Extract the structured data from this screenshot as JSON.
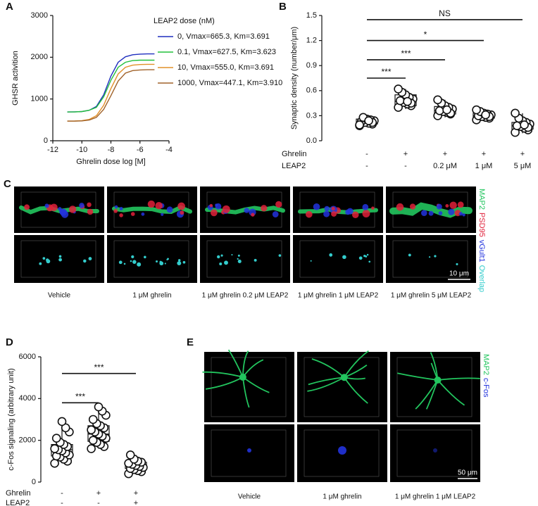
{
  "chart_data": [
    {
      "panel_label": "A",
      "type": "line",
      "ylabel": "GHSR activition",
      "xlabel": "Ghrelin dose log [M]",
      "legend_title": "LEAP2 dose (nM)",
      "x": [
        -11,
        -10.5,
        -10,
        -9.5,
        -9,
        -8.5,
        -8,
        -7.5,
        -7,
        -6.5,
        -6,
        -5.5,
        -5
      ],
      "series": [
        {
          "name": "0, Vmax=665.3, Km=3.691",
          "color": "#1f2fbf",
          "values": [
            690,
            692,
            700,
            730,
            820,
            1100,
            1550,
            1880,
            2010,
            2060,
            2075,
            2080,
            2080
          ]
        },
        {
          "name": "0.1, Vmax=627.5, Km=3.623",
          "color": "#22c03c",
          "values": [
            690,
            690,
            700,
            730,
            800,
            1050,
            1450,
            1760,
            1880,
            1920,
            1930,
            1930,
            1930
          ]
        },
        {
          "name": "10, Vmax=555.0, Km=3.691",
          "color": "#e0902a",
          "values": [
            470,
            472,
            480,
            510,
            600,
            850,
            1250,
            1600,
            1760,
            1810,
            1825,
            1830,
            1830
          ]
        },
        {
          "name": "1000, Vmax=447.1, Km=3.910",
          "color": "#a0622a",
          "values": [
            470,
            470,
            475,
            495,
            560,
            750,
            1080,
            1430,
            1620,
            1680,
            1695,
            1700,
            1700
          ]
        }
      ],
      "xlim": [
        -12,
        -4
      ],
      "xticks": [
        -12,
        -10,
        -8,
        -6,
        -4
      ],
      "ylim": [
        0,
        3000
      ],
      "yticks": [
        0,
        1000,
        2000,
        3000
      ]
    },
    {
      "panel_label": "B",
      "type": "box",
      "ylabel": "Synaptic density (number/μm)",
      "x_rows": [
        {
          "label": "Ghrelin",
          "values": [
            "-",
            "+",
            "+",
            "+",
            "+"
          ]
        },
        {
          "label": "LEAP2",
          "values": [
            "-",
            "-",
            "0.2 μM",
            "1 μM",
            "5 μM"
          ]
        }
      ],
      "groups": [
        {
          "min": 0.17,
          "q1": 0.2,
          "median": 0.23,
          "q3": 0.26,
          "max": 0.29,
          "points": [
            0.18,
            0.2,
            0.21,
            0.22,
            0.23,
            0.24,
            0.25,
            0.26,
            0.28,
            0.19,
            0.22,
            0.24
          ]
        },
        {
          "min": 0.38,
          "q1": 0.42,
          "median": 0.47,
          "q3": 0.55,
          "max": 0.62,
          "points": [
            0.4,
            0.42,
            0.44,
            0.46,
            0.48,
            0.5,
            0.52,
            0.55,
            0.58,
            0.62,
            0.45,
            0.47
          ]
        },
        {
          "min": 0.28,
          "q1": 0.32,
          "median": 0.36,
          "q3": 0.41,
          "max": 0.49,
          "points": [
            0.3,
            0.32,
            0.34,
            0.35,
            0.36,
            0.38,
            0.4,
            0.42,
            0.45,
            0.49,
            0.33,
            0.37
          ]
        },
        {
          "min": 0.24,
          "q1": 0.27,
          "median": 0.3,
          "q3": 0.33,
          "max": 0.38,
          "points": [
            0.25,
            0.27,
            0.28,
            0.29,
            0.3,
            0.31,
            0.32,
            0.33,
            0.35,
            0.37,
            0.29,
            0.31
          ]
        },
        {
          "min": 0.09,
          "q1": 0.14,
          "median": 0.18,
          "q3": 0.22,
          "max": 0.33,
          "points": [
            0.1,
            0.13,
            0.15,
            0.17,
            0.18,
            0.2,
            0.22,
            0.24,
            0.27,
            0.33,
            0.16,
            0.19
          ]
        }
      ],
      "annotations": [
        {
          "text": "***",
          "y": 0.75
        },
        {
          "text": "***",
          "y": 0.97
        },
        {
          "text": "*",
          "y": 1.2
        },
        {
          "text": "NS",
          "y": 1.45
        }
      ],
      "ylim": [
        0,
        1.5
      ],
      "yticks": [
        {
          "value": 0,
          "label": "0.0"
        },
        0.3,
        0.6,
        0.9,
        1.2,
        1.5
      ]
    },
    {
      "panel_label": "D",
      "type": "box",
      "ylabel": "c-Fos signaling (arbitrary unit)",
      "x_rows": [
        {
          "label": "Ghrelin",
          "values": [
            "-",
            "+",
            "+"
          ]
        },
        {
          "label": "LEAP2",
          "values": [
            "-",
            "-",
            "+"
          ]
        }
      ],
      "groups": [
        {
          "min": 900,
          "q1": 1250,
          "median": 1550,
          "q3": 1800,
          "max": 2900,
          "points": [
            900,
            1000,
            1100,
            1200,
            1250,
            1300,
            1400,
            1500,
            1550,
            1600,
            1700,
            1800,
            1900,
            2100,
            2400,
            2600,
            2900
          ]
        },
        {
          "min": 1600,
          "q1": 1950,
          "median": 2300,
          "q3": 2700,
          "max": 3600,
          "points": [
            1600,
            1700,
            1800,
            1900,
            2000,
            2100,
            2200,
            2300,
            2400,
            2500,
            2600,
            2700,
            2800,
            3000,
            3200,
            3400,
            3600
          ]
        },
        {
          "min": 400,
          "q1": 650,
          "median": 800,
          "q3": 950,
          "max": 1300,
          "points": [
            400,
            500,
            550,
            600,
            650,
            700,
            750,
            800,
            850,
            900,
            950,
            1000,
            1100,
            1300
          ]
        }
      ],
      "annotations": [
        {
          "text": "***",
          "y": 3800
        },
        {
          "text": "***",
          "y": 5200
        }
      ],
      "ylim": [
        0,
        6000
      ],
      "yticks": [
        0,
        2000,
        4000,
        6000
      ]
    }
  ],
  "panel_c": {
    "panel_label": "C",
    "channels": [
      {
        "name": "MAP2",
        "color": "#22c55e"
      },
      {
        "name": "PSD95",
        "color": "#e0203a"
      },
      {
        "name": "vGult1",
        "color": "#2233dd"
      },
      {
        "name": "Overlap",
        "color": "#33cccc"
      }
    ],
    "captions": [
      "Vehicle",
      "1 μM ghrelin",
      "1 μM ghrelin 0.2 μM LEAP2",
      "1 μM ghrelin 1 μM LEAP2",
      "1 μM ghrelin 5 μM LEAP2"
    ],
    "scale_bar": "10 μm"
  },
  "panel_e": {
    "panel_label": "E",
    "channels": [
      {
        "name": "MAP2",
        "color": "#22c55e"
      },
      {
        "name": "c-Fos",
        "color": "#2233dd"
      }
    ],
    "captions": [
      "Vehicle",
      "1 μM ghrelin",
      "1 μM ghrelin 1 μM LEAP2"
    ],
    "scale_bar": "50 μm"
  }
}
